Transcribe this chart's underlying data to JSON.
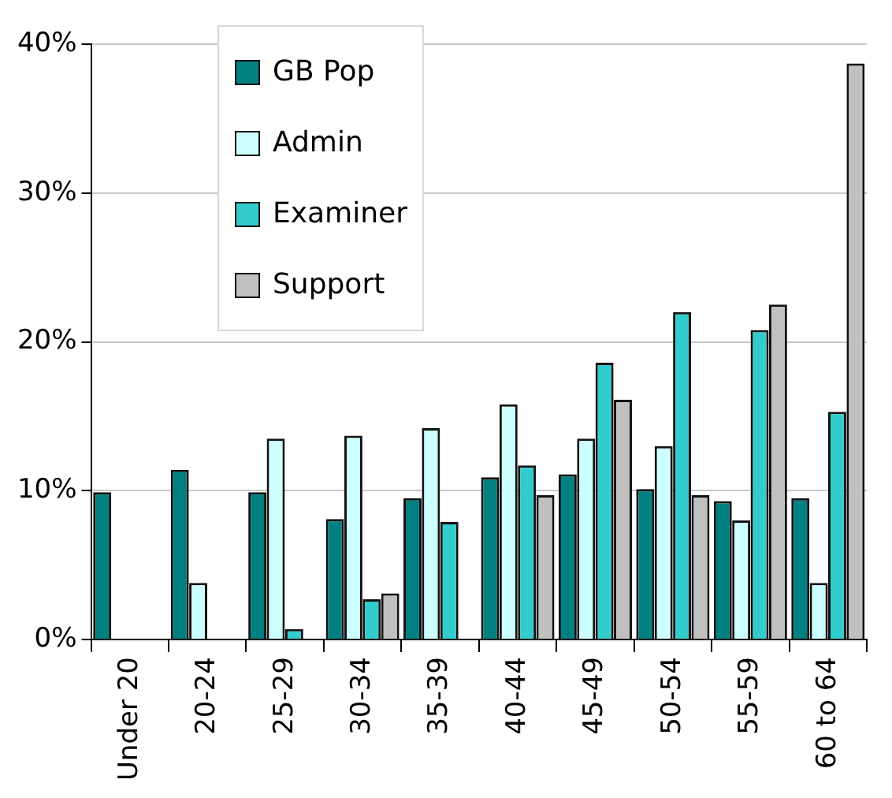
{
  "chart_data": {
    "type": "bar",
    "categories": [
      "Under 20",
      "20-24",
      "25-29",
      "30-34",
      "35-39",
      "40-44",
      "45-49",
      "50-54",
      "55-59",
      "60 to 64"
    ],
    "series": [
      {
        "name": "GB Pop",
        "color": "#008080",
        "values": [
          9.9,
          11.4,
          9.9,
          8.1,
          9.5,
          10.9,
          11.1,
          10.1,
          9.3,
          9.5
        ]
      },
      {
        "name": "Admin",
        "color": "#ccffff",
        "values": [
          null,
          3.8,
          13.5,
          13.7,
          14.2,
          15.8,
          13.5,
          13.0,
          8.0,
          3.8
        ]
      },
      {
        "name": "Examiner",
        "color": "#33cccc",
        "values": [
          null,
          null,
          0.7,
          2.7,
          7.9,
          11.7,
          18.6,
          22.0,
          20.8,
          15.3
        ]
      },
      {
        "name": "Support",
        "color": "#c0c0c0",
        "values": [
          null,
          null,
          null,
          3.1,
          null,
          9.7,
          16.1,
          9.7,
          22.5,
          38.7
        ]
      }
    ],
    "ylim": [
      0,
      40
    ],
    "yticks": [
      {
        "value": 0,
        "label": "0%"
      },
      {
        "value": 10,
        "label": "10%"
      },
      {
        "value": 20,
        "label": "20%"
      },
      {
        "value": 30,
        "label": "30%"
      },
      {
        "value": 40,
        "label": "40%"
      }
    ],
    "grid": "y",
    "legend": "top left"
  }
}
